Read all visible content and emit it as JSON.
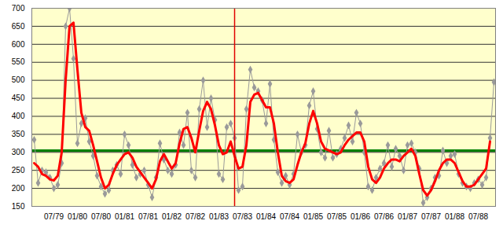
{
  "chart_data": {
    "type": "line",
    "categories": [
      null,
      null,
      null,
      null,
      null,
      "07/79",
      null,
      null,
      null,
      null,
      null,
      "01/80",
      null,
      null,
      null,
      null,
      null,
      "07/80",
      null,
      null,
      null,
      null,
      null,
      "01/81",
      null,
      null,
      null,
      null,
      null,
      "07/81",
      null,
      null,
      null,
      null,
      null,
      "01/82",
      null,
      null,
      null,
      null,
      null,
      "07/82",
      null,
      null,
      null,
      null,
      null,
      "01/83",
      null,
      null,
      null,
      null,
      null,
      "07/83",
      null,
      null,
      null,
      null,
      null,
      "01/84",
      null,
      null,
      null,
      null,
      null,
      "07/84",
      null,
      null,
      null,
      null,
      null,
      "01/85",
      null,
      null,
      null,
      null,
      null,
      "07/85",
      null,
      null,
      null,
      null,
      null,
      "01/86",
      null,
      null,
      null,
      null,
      null,
      "07/86",
      null,
      null,
      null,
      null,
      null,
      "01/87",
      null,
      null,
      null,
      null,
      null,
      "07/87",
      null,
      null,
      null,
      null,
      null,
      "01/88",
      null,
      null,
      null,
      null,
      null,
      "07/88",
      null,
      null,
      null,
      null
    ],
    "series": [
      {
        "color": "#9a9a9a",
        "marker": "diamond",
        "values": [
          335,
          215,
          250,
          245,
          230,
          200,
          210,
          270,
          650,
          700,
          560,
          325,
          380,
          395,
          330,
          290,
          235,
          205,
          185,
          195,
          250,
          265,
          240,
          350,
          320,
          265,
          230,
          240,
          250,
          210,
          175,
          230,
          325,
          280,
          250,
          240,
          265,
          355,
          320,
          410,
          250,
          230,
          420,
          500,
          370,
          450,
          390,
          240,
          225,
          370,
          380,
          340,
          195,
          205,
          420,
          530,
          480,
          470,
          445,
          380,
          490,
          335,
          245,
          215,
          235,
          210,
          240,
          350,
          300,
          320,
          430,
          470,
          365,
          300,
          285,
          360,
          285,
          295,
          310,
          340,
          375,
          330,
          410,
          380,
          300,
          205,
          195,
          230,
          255,
          270,
          320,
          260,
          310,
          290,
          250,
          320,
          325,
          300,
          255,
          160,
          175,
          200,
          230,
          235,
          305,
          270,
          290,
          295,
          240,
          215,
          205,
          200,
          215,
          225,
          210,
          230,
          340,
          495
        ]
      },
      {
        "color": "#ff0000",
        "values": [
          270,
          260,
          240,
          235,
          225,
          222,
          235,
          300,
          500,
          650,
          660,
          530,
          410,
          370,
          360,
          320,
          275,
          230,
          200,
          210,
          240,
          265,
          280,
          295,
          300,
          285,
          260,
          245,
          230,
          215,
          200,
          225,
          275,
          295,
          275,
          255,
          270,
          325,
          365,
          370,
          340,
          300,
          360,
          415,
          440,
          420,
          375,
          320,
          295,
          300,
          330,
          290,
          255,
          260,
          320,
          440,
          460,
          465,
          445,
          425,
          425,
          380,
          300,
          235,
          220,
          215,
          225,
          265,
          300,
          325,
          380,
          415,
          380,
          330,
          310,
          305,
          300,
          295,
          300,
          320,
          335,
          345,
          355,
          355,
          330,
          260,
          225,
          215,
          230,
          255,
          270,
          280,
          280,
          275,
          290,
          300,
          310,
          290,
          240,
          195,
          180,
          195,
          220,
          250,
          270,
          280,
          280,
          270,
          245,
          220,
          205,
          205,
          210,
          225,
          240,
          255,
          330,
          null
        ]
      }
    ],
    "annotations": [
      {
        "type": "hline",
        "y": 305,
        "color": "#008000"
      },
      {
        "type": "vline",
        "x": 51,
        "color": "#e00000"
      }
    ],
    "ylim": [
      150,
      700
    ],
    "yticks": [
      150,
      200,
      250,
      300,
      350,
      400,
      450,
      500,
      550,
      600,
      650,
      700
    ],
    "grid": true
  }
}
